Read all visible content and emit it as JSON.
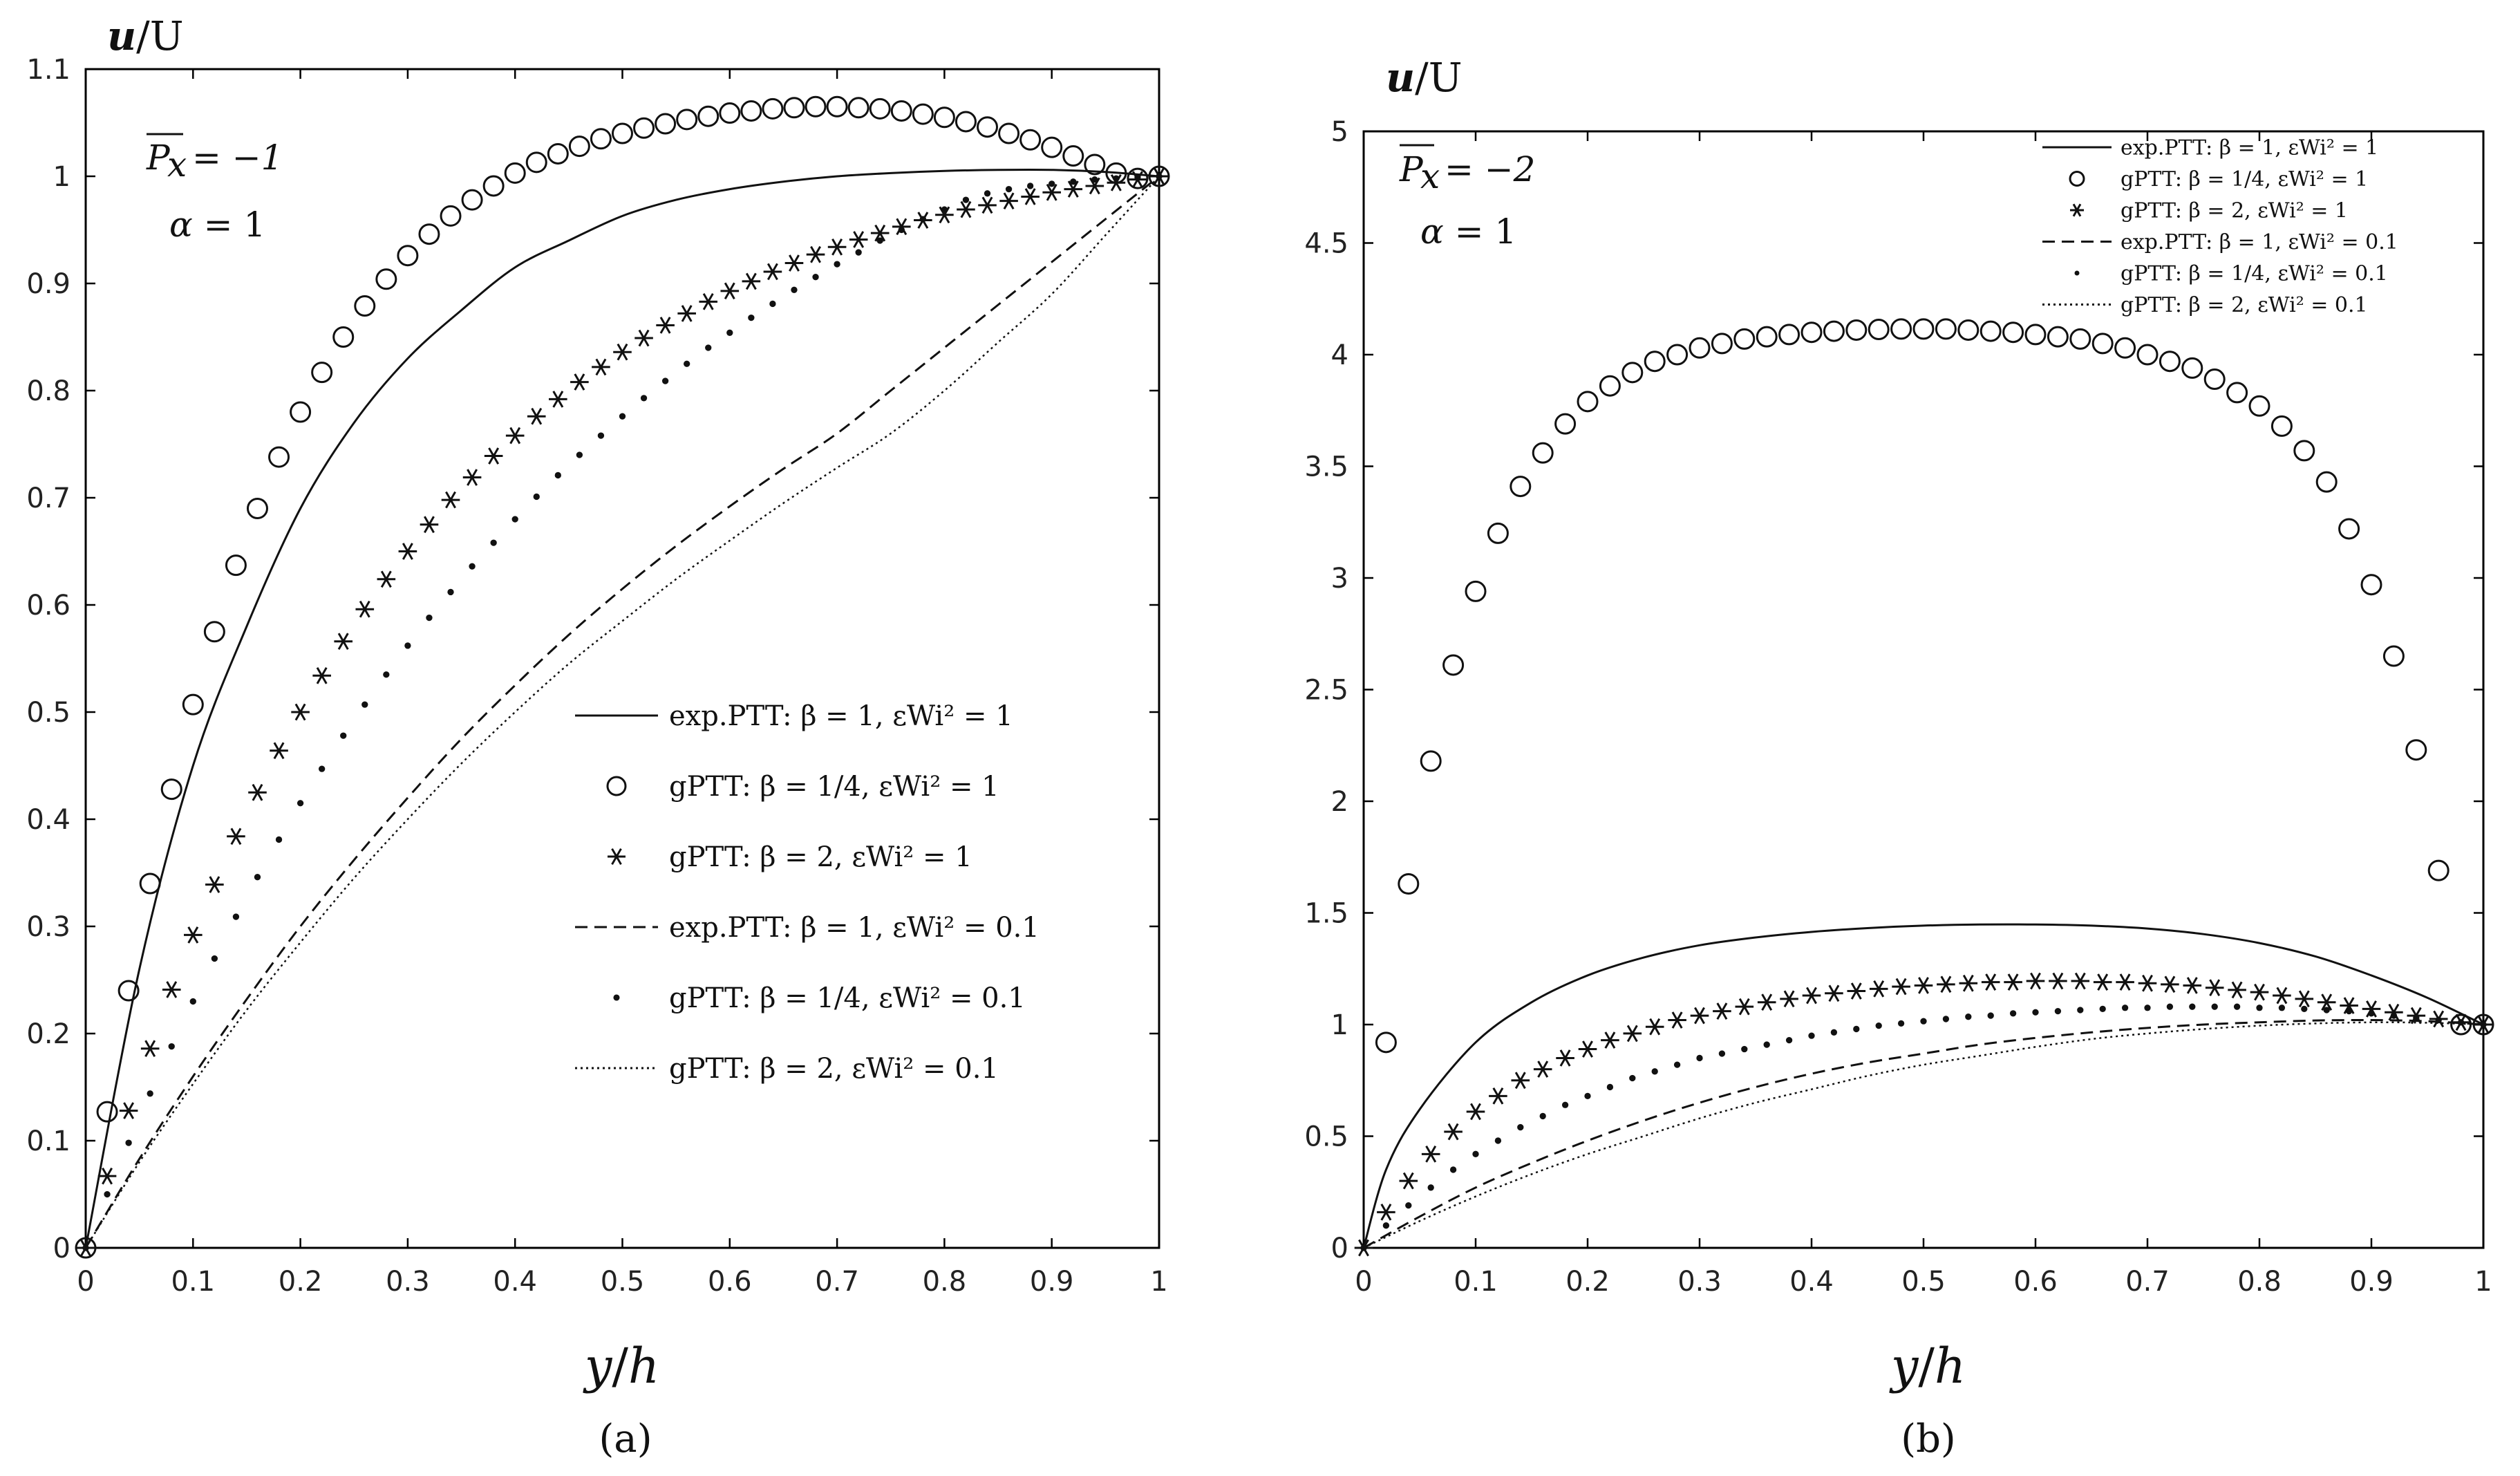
{
  "chart_data": [
    {
      "type": "line",
      "panel_label": "(a)",
      "ylabel": "u/U",
      "xlabel": "y/h",
      "xlim": [
        0,
        1
      ],
      "ylim": [
        0,
        1.1
      ],
      "xticks": [
        0,
        0.1,
        0.2,
        0.3,
        0.4,
        0.5,
        0.6,
        0.7,
        0.8,
        0.9,
        1
      ],
      "yticks": [
        0,
        0.1,
        0.2,
        0.3,
        0.4,
        0.5,
        0.6,
        0.7,
        0.8,
        0.9,
        1,
        1.1
      ],
      "annotations": [
        "P_x = −1",
        "α = 1"
      ],
      "legend_position": "right",
      "series": [
        {
          "name": "exp.PTT: β = 1, εWi² = 1",
          "style": "solid",
          "x": [
            0,
            0.05,
            0.1,
            0.15,
            0.2,
            0.25,
            0.3,
            0.35,
            0.4,
            0.45,
            0.5,
            0.55,
            0.6,
            0.65,
            0.7,
            0.75,
            0.8,
            0.85,
            0.9,
            0.95,
            1
          ],
          "y": [
            0,
            0.26,
            0.45,
            0.58,
            0.69,
            0.77,
            0.83,
            0.875,
            0.915,
            0.94,
            0.963,
            0.978,
            0.988,
            0.995,
            1.0,
            1.003,
            1.005,
            1.006,
            1.006,
            1.004,
            1.0
          ]
        },
        {
          "name": "gPTT: β = 1/4, εWi² = 1",
          "style": "circle",
          "x": [
            0,
            0.02,
            0.04,
            0.06,
            0.08,
            0.1,
            0.12,
            0.14,
            0.16,
            0.18,
            0.2,
            0.22,
            0.24,
            0.26,
            0.28,
            0.3,
            0.32,
            0.34,
            0.36,
            0.38,
            0.4,
            0.42,
            0.44,
            0.46,
            0.48,
            0.5,
            0.52,
            0.54,
            0.56,
            0.58,
            0.6,
            0.62,
            0.64,
            0.66,
            0.68,
            0.7,
            0.72,
            0.74,
            0.76,
            0.78,
            0.8,
            0.82,
            0.84,
            0.86,
            0.88,
            0.9,
            0.92,
            0.94,
            0.96,
            0.98,
            1
          ],
          "y": [
            0,
            0.127,
            0.24,
            0.34,
            0.428,
            0.507,
            0.575,
            0.637,
            0.69,
            0.738,
            0.78,
            0.817,
            0.85,
            0.879,
            0.904,
            0.926,
            0.946,
            0.963,
            0.978,
            0.991,
            1.003,
            1.013,
            1.021,
            1.028,
            1.035,
            1.04,
            1.045,
            1.049,
            1.053,
            1.056,
            1.059,
            1.061,
            1.063,
            1.064,
            1.065,
            1.065,
            1.064,
            1.063,
            1.061,
            1.058,
            1.055,
            1.051,
            1.046,
            1.04,
            1.034,
            1.027,
            1.019,
            1.011,
            1.003,
            0.998,
            1.0
          ]
        },
        {
          "name": "gPTT: β = 2, εWi² = 1",
          "style": "asterisk",
          "x": [
            0,
            0.02,
            0.04,
            0.06,
            0.08,
            0.1,
            0.12,
            0.14,
            0.16,
            0.18,
            0.2,
            0.22,
            0.24,
            0.26,
            0.28,
            0.3,
            0.32,
            0.34,
            0.36,
            0.38,
            0.4,
            0.42,
            0.44,
            0.46,
            0.48,
            0.5,
            0.52,
            0.54,
            0.56,
            0.58,
            0.6,
            0.62,
            0.64,
            0.66,
            0.68,
            0.7,
            0.72,
            0.74,
            0.76,
            0.78,
            0.8,
            0.82,
            0.84,
            0.86,
            0.88,
            0.9,
            0.92,
            0.94,
            0.96,
            0.98,
            1
          ],
          "y": [
            0,
            0.067,
            0.128,
            0.186,
            0.241,
            0.292,
            0.339,
            0.384,
            0.425,
            0.464,
            0.5,
            0.534,
            0.566,
            0.596,
            0.624,
            0.65,
            0.675,
            0.698,
            0.719,
            0.739,
            0.758,
            0.776,
            0.792,
            0.808,
            0.822,
            0.836,
            0.849,
            0.861,
            0.872,
            0.883,
            0.893,
            0.902,
            0.911,
            0.919,
            0.927,
            0.934,
            0.941,
            0.947,
            0.953,
            0.959,
            0.964,
            0.969,
            0.973,
            0.977,
            0.981,
            0.985,
            0.988,
            0.991,
            0.994,
            0.997,
            1.0
          ]
        },
        {
          "name": "exp.PTT: β = 1, εWi² = 0.1",
          "style": "dashed",
          "x": [
            0,
            0.05,
            0.1,
            0.15,
            0.2,
            0.25,
            0.3,
            0.35,
            0.4,
            0.45,
            0.5,
            0.55,
            0.6,
            0.65,
            0.7,
            0.75,
            0.8,
            0.85,
            0.9,
            0.95,
            1
          ],
          "y": [
            0,
            0.083,
            0.16,
            0.232,
            0.3,
            0.362,
            0.42,
            0.475,
            0.525,
            0.572,
            0.615,
            0.655,
            0.692,
            0.727,
            0.76,
            0.8,
            0.84,
            0.88,
            0.92,
            0.96,
            1.0
          ]
        },
        {
          "name": "gPTT: β = 1/4, εWi² = 0.1",
          "style": "dot",
          "x": [
            0,
            0.02,
            0.04,
            0.06,
            0.08,
            0.1,
            0.12,
            0.14,
            0.16,
            0.18,
            0.2,
            0.22,
            0.24,
            0.26,
            0.28,
            0.3,
            0.32,
            0.34,
            0.36,
            0.38,
            0.4,
            0.42,
            0.44,
            0.46,
            0.48,
            0.5,
            0.52,
            0.54,
            0.56,
            0.58,
            0.6,
            0.62,
            0.64,
            0.66,
            0.68,
            0.7,
            0.72,
            0.74,
            0.76,
            0.78,
            0.8,
            0.82,
            0.84,
            0.86,
            0.88,
            0.9,
            0.92,
            0.94,
            0.96,
            0.98,
            1
          ],
          "y": [
            0,
            0.05,
            0.098,
            0.144,
            0.188,
            0.23,
            0.27,
            0.309,
            0.346,
            0.381,
            0.415,
            0.447,
            0.478,
            0.507,
            0.535,
            0.562,
            0.588,
            0.612,
            0.636,
            0.658,
            0.68,
            0.701,
            0.721,
            0.74,
            0.758,
            0.776,
            0.793,
            0.809,
            0.825,
            0.84,
            0.854,
            0.868,
            0.881,
            0.894,
            0.906,
            0.918,
            0.929,
            0.94,
            0.95,
            0.96,
            0.969,
            0.978,
            0.984,
            0.988,
            0.991,
            0.993,
            0.995,
            0.997,
            0.998,
            0.999,
            1.0
          ]
        },
        {
          "name": "gPTT: β = 2, εWi² = 0.1",
          "style": "dotted",
          "x": [
            0,
            0.05,
            0.1,
            0.15,
            0.2,
            0.25,
            0.3,
            0.35,
            0.4,
            0.45,
            0.5,
            0.55,
            0.6,
            0.65,
            0.7,
            0.75,
            0.8,
            0.85,
            0.9,
            0.95,
            1
          ],
          "y": [
            0,
            0.08,
            0.153,
            0.222,
            0.285,
            0.345,
            0.4,
            0.452,
            0.5,
            0.545,
            0.585,
            0.624,
            0.66,
            0.695,
            0.728,
            0.76,
            0.8,
            0.845,
            0.89,
            0.945,
            1.0
          ]
        }
      ]
    },
    {
      "type": "line",
      "panel_label": "(b)",
      "ylabel": "u/U",
      "xlabel": "y/h",
      "xlim": [
        0,
        1
      ],
      "ylim": [
        0,
        5
      ],
      "xticks": [
        0,
        0.1,
        0.2,
        0.3,
        0.4,
        0.5,
        0.6,
        0.7,
        0.8,
        0.9,
        1
      ],
      "yticks": [
        0,
        0.5,
        1,
        1.5,
        2,
        2.5,
        3,
        3.5,
        4,
        4.5,
        5
      ],
      "annotations": [
        "P_x = −2",
        "α = 1"
      ],
      "legend_position": "top-right",
      "series": [
        {
          "name": "exp.PTT: β = 1, εWi² = 1",
          "style": "solid",
          "x": [
            0,
            0.02,
            0.05,
            0.1,
            0.15,
            0.2,
            0.25,
            0.3,
            0.35,
            0.4,
            0.45,
            0.5,
            0.55,
            0.6,
            0.65,
            0.7,
            0.75,
            0.8,
            0.85,
            0.9,
            0.95,
            1
          ],
          "y": [
            0,
            0.35,
            0.62,
            0.92,
            1.1,
            1.22,
            1.3,
            1.355,
            1.39,
            1.415,
            1.432,
            1.443,
            1.448,
            1.448,
            1.443,
            1.43,
            1.405,
            1.365,
            1.305,
            1.22,
            1.12,
            1.0
          ]
        },
        {
          "name": "gPTT: β = 1/4, εWi² = 1",
          "style": "circle",
          "x": [
            0.02,
            0.04,
            0.06,
            0.08,
            0.1,
            0.12,
            0.14,
            0.16,
            0.18,
            0.2,
            0.22,
            0.24,
            0.26,
            0.28,
            0.3,
            0.32,
            0.34,
            0.36,
            0.38,
            0.4,
            0.42,
            0.44,
            0.46,
            0.48,
            0.5,
            0.52,
            0.54,
            0.56,
            0.58,
            0.6,
            0.62,
            0.64,
            0.66,
            0.68,
            0.7,
            0.72,
            0.74,
            0.76,
            0.78,
            0.8,
            0.82,
            0.84,
            0.86,
            0.88,
            0.9,
            0.92,
            0.94,
            0.96,
            0.98,
            1
          ],
          "y": [
            0.92,
            1.63,
            2.18,
            2.61,
            2.94,
            3.2,
            3.41,
            3.56,
            3.69,
            3.79,
            3.86,
            3.92,
            3.97,
            4.0,
            4.03,
            4.05,
            4.07,
            4.08,
            4.09,
            4.1,
            4.105,
            4.11,
            4.113,
            4.115,
            4.115,
            4.115,
            4.11,
            4.105,
            4.1,
            4.09,
            4.08,
            4.07,
            4.05,
            4.03,
            4.0,
            3.97,
            3.94,
            3.89,
            3.83,
            3.77,
            3.68,
            3.57,
            3.43,
            3.22,
            2.97,
            2.65,
            2.23,
            1.69,
            1.0,
            1.0
          ]
        },
        {
          "name": "gPTT: β = 2, εWi² = 1",
          "style": "asterisk",
          "x": [
            0,
            0.02,
            0.04,
            0.06,
            0.08,
            0.1,
            0.12,
            0.14,
            0.16,
            0.18,
            0.2,
            0.22,
            0.24,
            0.26,
            0.28,
            0.3,
            0.32,
            0.34,
            0.36,
            0.38,
            0.4,
            0.42,
            0.44,
            0.46,
            0.48,
            0.5,
            0.52,
            0.54,
            0.56,
            0.58,
            0.6,
            0.62,
            0.64,
            0.66,
            0.68,
            0.7,
            0.72,
            0.74,
            0.76,
            0.78,
            0.8,
            0.82,
            0.84,
            0.86,
            0.88,
            0.9,
            0.92,
            0.94,
            0.96,
            0.98,
            1
          ],
          "y": [
            0,
            0.16,
            0.3,
            0.42,
            0.52,
            0.61,
            0.68,
            0.75,
            0.8,
            0.85,
            0.89,
            0.93,
            0.96,
            0.99,
            1.02,
            1.04,
            1.06,
            1.08,
            1.1,
            1.115,
            1.13,
            1.14,
            1.15,
            1.16,
            1.17,
            1.175,
            1.18,
            1.185,
            1.19,
            1.19,
            1.195,
            1.195,
            1.195,
            1.19,
            1.19,
            1.185,
            1.18,
            1.175,
            1.165,
            1.155,
            1.145,
            1.13,
            1.115,
            1.1,
            1.085,
            1.07,
            1.055,
            1.04,
            1.025,
            1.01,
            1.0
          ]
        },
        {
          "name": "exp.PTT: β = 1, εWi² = 0.1",
          "style": "dashed",
          "x": [
            0,
            0.05,
            0.1,
            0.15,
            0.2,
            0.25,
            0.3,
            0.35,
            0.4,
            0.45,
            0.5,
            0.55,
            0.6,
            0.65,
            0.7,
            0.75,
            0.8,
            0.85,
            0.9,
            0.95,
            1
          ],
          "y": [
            0,
            0.14,
            0.27,
            0.38,
            0.48,
            0.57,
            0.65,
            0.72,
            0.78,
            0.83,
            0.87,
            0.91,
            0.94,
            0.965,
            0.985,
            1.0,
            1.01,
            1.018,
            1.02,
            1.015,
            1.0
          ]
        },
        {
          "name": "gPTT: β = 1/4, εWi² = 0.1",
          "style": "dot",
          "x": [
            0,
            0.02,
            0.04,
            0.06,
            0.08,
            0.1,
            0.12,
            0.14,
            0.16,
            0.18,
            0.2,
            0.22,
            0.24,
            0.26,
            0.28,
            0.3,
            0.32,
            0.34,
            0.36,
            0.38,
            0.4,
            0.42,
            0.44,
            0.46,
            0.48,
            0.5,
            0.52,
            0.54,
            0.56,
            0.58,
            0.6,
            0.62,
            0.64,
            0.66,
            0.68,
            0.7,
            0.72,
            0.74,
            0.76,
            0.78,
            0.8,
            0.82,
            0.84,
            0.86,
            0.88,
            0.9,
            0.92,
            0.94,
            0.96,
            0.98,
            1
          ],
          "y": [
            0,
            0.1,
            0.19,
            0.27,
            0.35,
            0.42,
            0.48,
            0.54,
            0.59,
            0.64,
            0.68,
            0.72,
            0.76,
            0.79,
            0.82,
            0.85,
            0.87,
            0.89,
            0.91,
            0.93,
            0.95,
            0.965,
            0.98,
            0.995,
            1.005,
            1.015,
            1.025,
            1.035,
            1.04,
            1.05,
            1.055,
            1.06,
            1.065,
            1.07,
            1.075,
            1.075,
            1.08,
            1.08,
            1.08,
            1.08,
            1.075,
            1.075,
            1.07,
            1.065,
            1.06,
            1.05,
            1.04,
            1.03,
            1.02,
            1.01,
            1.0
          ]
        },
        {
          "name": "gPTT: β = 2, εWi² = 0.1",
          "style": "dotted",
          "x": [
            0,
            0.05,
            0.1,
            0.15,
            0.2,
            0.25,
            0.3,
            0.35,
            0.4,
            0.45,
            0.5,
            0.55,
            0.6,
            0.65,
            0.7,
            0.75,
            0.8,
            0.85,
            0.9,
            0.95,
            1
          ],
          "y": [
            0,
            0.12,
            0.23,
            0.33,
            0.42,
            0.5,
            0.58,
            0.65,
            0.71,
            0.77,
            0.82,
            0.86,
            0.9,
            0.935,
            0.96,
            0.98,
            0.995,
            1.005,
            1.01,
            1.008,
            1.0
          ]
        }
      ]
    }
  ]
}
